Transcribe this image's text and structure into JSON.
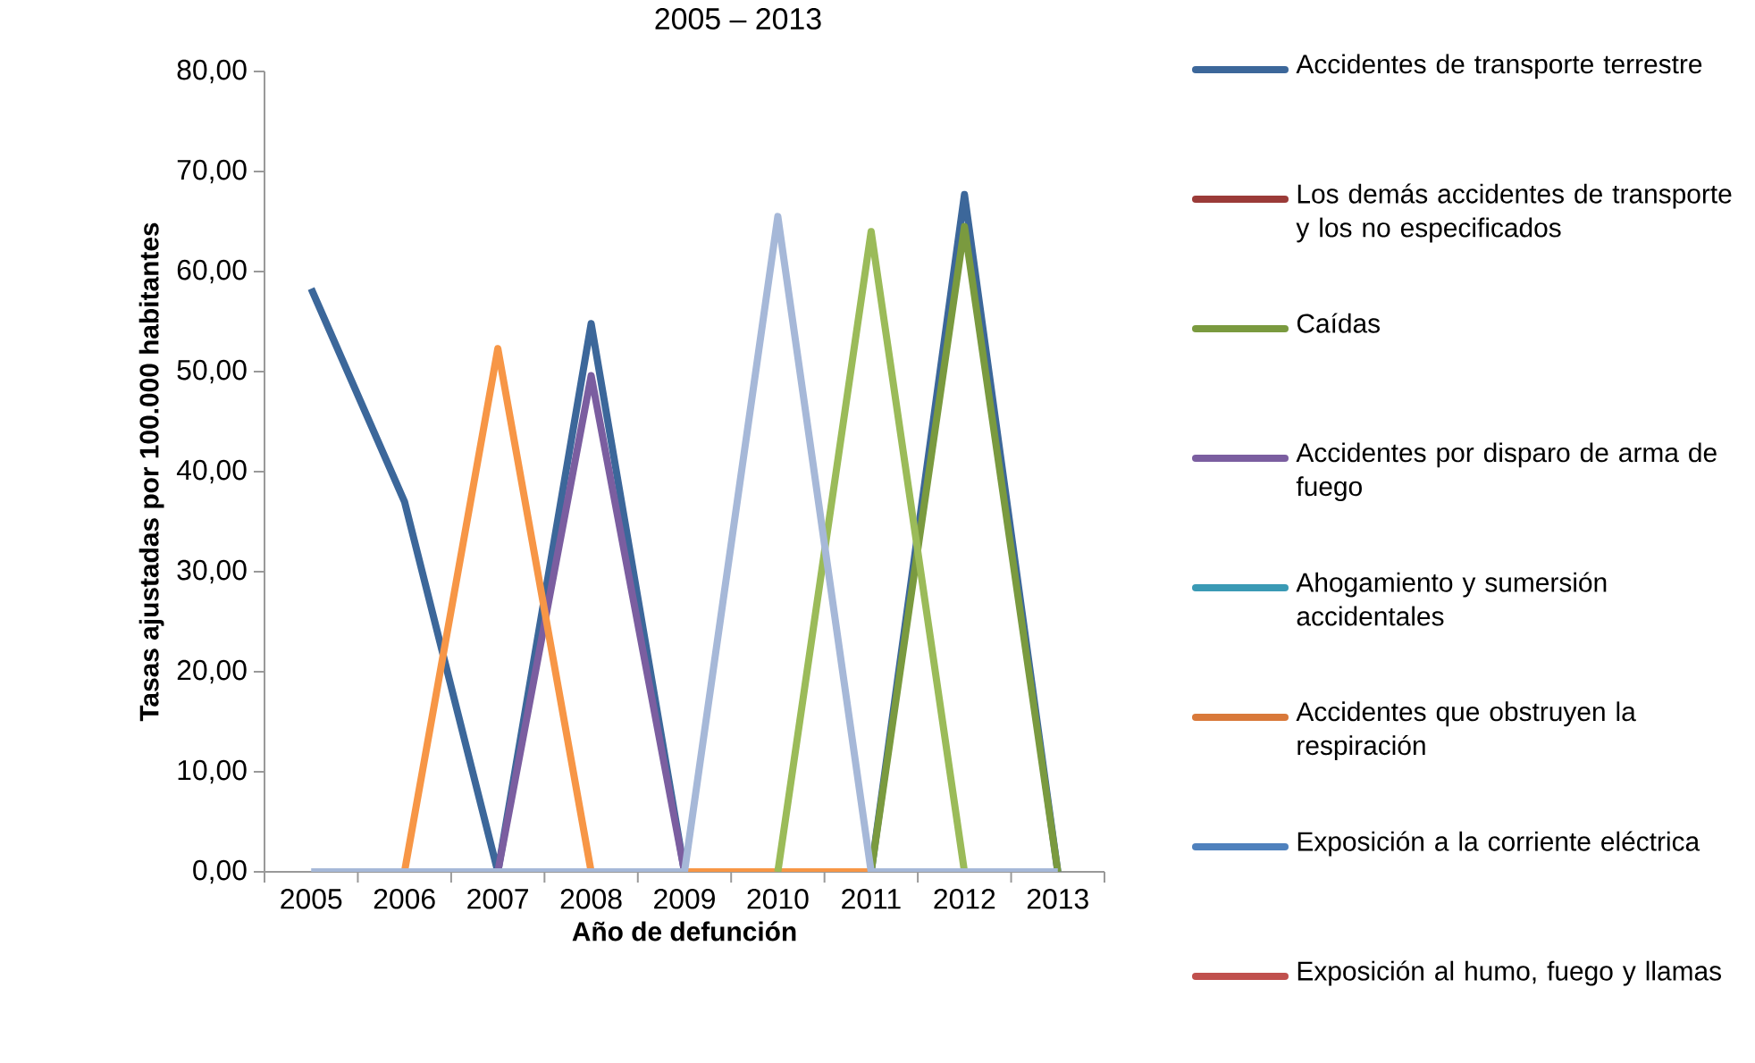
{
  "chart_data": {
    "type": "line",
    "title": "2005 – 2013",
    "xlabel": "Año de defunción",
    "ylabel": "Tasas ajustadas por 100.000 habitantes",
    "categories": [
      "2005",
      "2006",
      "2007",
      "2008",
      "2009",
      "2010",
      "2011",
      "2012",
      "2013"
    ],
    "series": [
      {
        "name": "Accidentes de transporte terrestre",
        "color": "#3c679a",
        "values": [
          58.3,
          37.0,
          0,
          54.8,
          0,
          0,
          0,
          67.7,
          0
        ]
      },
      {
        "name": "Los demás accidentes de transporte y los no especificados",
        "color": "#9b3b38",
        "values": [
          null,
          null,
          null,
          null,
          null,
          null,
          null,
          null,
          null
        ]
      },
      {
        "name": "Caídas",
        "color": "#7a9a3f",
        "values": [
          null,
          null,
          null,
          null,
          null,
          null,
          0,
          64.5,
          0
        ]
      },
      {
        "name": "Accidentes por disparo de arma de fuego",
        "color": "#7b5ea0",
        "values": [
          null,
          null,
          0,
          49.6,
          0,
          null,
          null,
          null,
          null
        ]
      },
      {
        "name": "Ahogamiento y sumersión accidentales",
        "color": "#3a9ab5",
        "values": [
          null,
          null,
          null,
          null,
          null,
          null,
          null,
          null,
          null
        ]
      },
      {
        "name": "Accidentes que obstruyen la respiración",
        "color": "#d9793a",
        "values": [
          null,
          null,
          null,
          null,
          null,
          null,
          null,
          null,
          null
        ]
      },
      {
        "name": "Exposición a la corriente eléctrica",
        "color": "#4f81bd",
        "values": [
          null,
          null,
          null,
          null,
          null,
          null,
          null,
          null,
          null
        ]
      },
      {
        "name": "Exposición al humo, fuego y llamas",
        "color": "#c0504d",
        "values": [
          null,
          null,
          null,
          null,
          null,
          null,
          null,
          null,
          null
        ]
      },
      {
        "color": "#f79646",
        "values": [
          null,
          0,
          52.3,
          0,
          0,
          0,
          0,
          null,
          null
        ]
      },
      {
        "color": "#9bbb59",
        "values": [
          null,
          null,
          null,
          null,
          null,
          0,
          64.0,
          0,
          null
        ]
      },
      {
        "color": "#a6b8d8",
        "values": [
          0,
          0,
          0,
          0,
          0,
          65.5,
          0,
          0,
          0
        ]
      }
    ],
    "ylim": [
      0,
      80
    ],
    "yticks": [
      {
        "value": 0,
        "label": "0,00"
      },
      {
        "value": 10,
        "label": "10,00"
      },
      {
        "value": 20,
        "label": "20,00"
      },
      {
        "value": 30,
        "label": "30,00"
      },
      {
        "value": 40,
        "label": "40,00"
      },
      {
        "value": 50,
        "label": "50,00"
      },
      {
        "value": 60,
        "label": "60,00"
      },
      {
        "value": 70,
        "label": "70,00"
      },
      {
        "value": 80,
        "label": "80,00"
      }
    ],
    "legend": "right",
    "grid": false,
    "marker": "none",
    "line_style": "solid"
  }
}
